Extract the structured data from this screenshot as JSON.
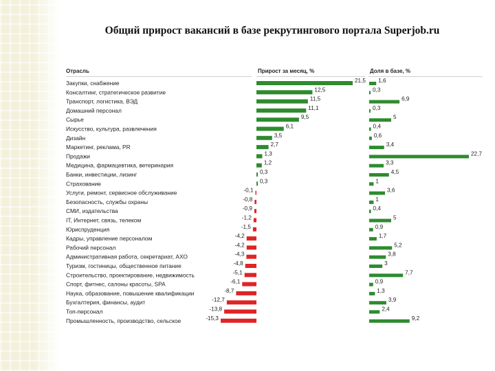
{
  "title": "Общий прирост вакансий в базе рекрутингового портала Superjob.ru",
  "headers": {
    "category": "Отрасль",
    "growth": "Прирост за месяц, %",
    "share": "Доля в базе, %"
  },
  "colors": {
    "positive": "#2e8b2e",
    "negative": "#e02424",
    "share": "#2e8b2e"
  },
  "chart_data": {
    "type": "bar",
    "categories": [
      "Закупки, снабжение",
      "Консалтинг, стратегическое развитие",
      "Транспорт, логистика, ВЭД",
      "Домашний персонал",
      "Сырье",
      "Искусство, культура, развлечения",
      "Дизайн",
      "Маркетинг, реклама, PR",
      "Продажи",
      "Медицина, фармацевтика, ветеринария",
      "Банки, инвестиции, лизинг",
      "Страхование",
      "Услуги, ремонт, сервисное обслуживание",
      "Безопасность, службы охраны",
      "СМИ, издательства",
      "IT, Интернет, связь, телеком",
      "Юриспруденция",
      "Кадры, управление персоналом",
      "Рабочий персонал",
      "Административная работа, секретариат, АХО",
      "Туризм, гостиницы, общественное питание",
      "Строительство, проектирование, недвижимость",
      "Спорт, фитнес, салоны красоты, SPA",
      "Наука, образование, повышение квалификации",
      "Бухгалтерия, финансы, аудит",
      "Топ-персонал",
      "Промышленность, производство, сельское"
    ],
    "series": [
      {
        "name": "Прирост за месяц, %",
        "values": [
          21.5,
          12.5,
          11.5,
          11.1,
          9.5,
          6.1,
          3.5,
          2.7,
          1.3,
          1.2,
          0.3,
          0.3,
          -0.1,
          -0.8,
          -0.9,
          -1.2,
          -1.5,
          -4.2,
          -4.2,
          -4.3,
          -4.8,
          -5.1,
          -6.1,
          -8.7,
          -12.7,
          -13.8,
          -15.3
        ],
        "labels": [
          "21,5",
          "12,5",
          "11,5",
          "11,1",
          "9,5",
          "6,1",
          "3,5",
          "2,7",
          "1,3",
          "1,2",
          "0,3",
          "0,3",
          "-0,1",
          "-0,8",
          "-0,9",
          "-1,2",
          "-1,5",
          "-4,2",
          "-4,2",
          "-4,3",
          "-4,8",
          "-5,1",
          "-6,1",
          "-8,7",
          "-12,7",
          "-13,8",
          "-15,3"
        ]
      },
      {
        "name": "Доля в базе, %",
        "values": [
          1.6,
          0.3,
          6.9,
          0.3,
          5,
          0.4,
          0.6,
          3.4,
          22.7,
          3.3,
          4.5,
          1,
          3.6,
          1,
          0.4,
          5,
          0.9,
          1.7,
          5.2,
          3.8,
          3,
          7.7,
          0.9,
          1.3,
          3.9,
          2.4,
          9.2
        ],
        "labels": [
          "1,6",
          "0,3",
          "6,9",
          "0,3",
          "5",
          "0,4",
          "0,6",
          "3,4",
          "22,7",
          "3,3",
          "4,5",
          "1",
          "3,6",
          "1",
          "0,4",
          "5",
          "0,9",
          "1,7",
          "5,2",
          "3,8",
          "3",
          "7,7",
          "0,9",
          "1,3",
          "3,9",
          "2,4",
          "9,2"
        ]
      }
    ]
  }
}
